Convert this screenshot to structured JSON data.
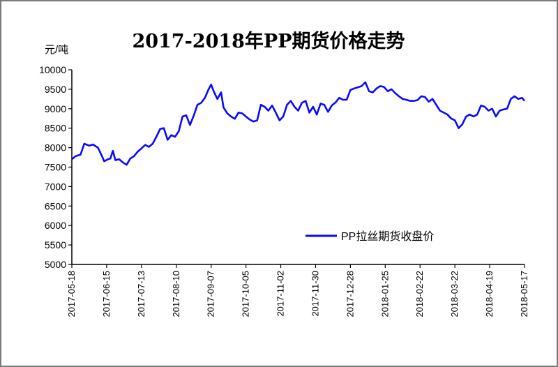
{
  "chart_data": {
    "type": "line",
    "title": "2017-2018年PP期货价格走势",
    "ylabel": "元/吨",
    "xlabel": "",
    "ylim": [
      5000,
      10000
    ],
    "yticks": [
      5000,
      5500,
      6000,
      6500,
      7000,
      7500,
      8000,
      8500,
      9000,
      9500,
      10000
    ],
    "x_ticks": [
      "2017-05-18",
      "2017-06-15",
      "2017-07-13",
      "2017-08-10",
      "2017-09-07",
      "2017-10-05",
      "2017-11-02",
      "2017-11-30",
      "2017-12-28",
      "2018-01-25",
      "2018-02-22",
      "2018-03-22",
      "2018-04-19",
      "2018-05-17"
    ],
    "grid": false,
    "legend_position": "bottom-right",
    "series": [
      {
        "name": "PP拉丝期货收盘价",
        "color": "#0a0aff",
        "points": [
          [
            "2017-05-18",
            7700
          ],
          [
            "2017-05-21",
            7780
          ],
          [
            "2017-05-25",
            7820
          ],
          [
            "2017-05-28",
            8100
          ],
          [
            "2017-06-01",
            8050
          ],
          [
            "2017-06-04",
            8080
          ],
          [
            "2017-06-08",
            8000
          ],
          [
            "2017-06-11",
            7800
          ],
          [
            "2017-06-13",
            7650
          ],
          [
            "2017-06-16",
            7700
          ],
          [
            "2017-06-18",
            7720
          ],
          [
            "2017-06-20",
            7920
          ],
          [
            "2017-06-22",
            7680
          ],
          [
            "2017-06-25",
            7700
          ],
          [
            "2017-06-28",
            7620
          ],
          [
            "2017-07-01",
            7560
          ],
          [
            "2017-07-04",
            7720
          ],
          [
            "2017-07-07",
            7780
          ],
          [
            "2017-07-10",
            7900
          ],
          [
            "2017-07-13",
            7980
          ],
          [
            "2017-07-16",
            8070
          ],
          [
            "2017-07-19",
            8020
          ],
          [
            "2017-07-22",
            8100
          ],
          [
            "2017-07-25",
            8280
          ],
          [
            "2017-07-28",
            8480
          ],
          [
            "2017-07-31",
            8500
          ],
          [
            "2017-08-03",
            8200
          ],
          [
            "2017-08-06",
            8320
          ],
          [
            "2017-08-09",
            8280
          ],
          [
            "2017-08-12",
            8420
          ],
          [
            "2017-08-15",
            8800
          ],
          [
            "2017-08-18",
            8830
          ],
          [
            "2017-08-21",
            8580
          ],
          [
            "2017-08-24",
            8820
          ],
          [
            "2017-08-27",
            9100
          ],
          [
            "2017-08-30",
            9150
          ],
          [
            "2017-09-02",
            9280
          ],
          [
            "2017-09-05",
            9500
          ],
          [
            "2017-09-07",
            9620
          ],
          [
            "2017-09-09",
            9450
          ],
          [
            "2017-09-12",
            9250
          ],
          [
            "2017-09-15",
            9420
          ],
          [
            "2017-09-17",
            9030
          ],
          [
            "2017-09-20",
            8880
          ],
          [
            "2017-09-23",
            8800
          ],
          [
            "2017-09-26",
            8740
          ],
          [
            "2017-09-29",
            8900
          ],
          [
            "2017-10-02",
            8880
          ],
          [
            "2017-10-05",
            8800
          ],
          [
            "2017-10-08",
            8720
          ],
          [
            "2017-10-11",
            8670
          ],
          [
            "2017-10-14",
            8700
          ],
          [
            "2017-10-17",
            9100
          ],
          [
            "2017-10-20",
            9050
          ],
          [
            "2017-10-23",
            8950
          ],
          [
            "2017-10-26",
            9080
          ],
          [
            "2017-10-29",
            8900
          ],
          [
            "2017-11-01",
            8700
          ],
          [
            "2017-11-04",
            8800
          ],
          [
            "2017-11-07",
            9100
          ],
          [
            "2017-11-10",
            9200
          ],
          [
            "2017-11-13",
            9050
          ],
          [
            "2017-11-16",
            8950
          ],
          [
            "2017-11-19",
            9150
          ],
          [
            "2017-11-22",
            9200
          ],
          [
            "2017-11-25",
            8900
          ],
          [
            "2017-11-28",
            9050
          ],
          [
            "2017-12-01",
            8850
          ],
          [
            "2017-12-04",
            9130
          ],
          [
            "2017-12-07",
            9100
          ],
          [
            "2017-12-10",
            8920
          ],
          [
            "2017-12-13",
            9080
          ],
          [
            "2017-12-16",
            9160
          ],
          [
            "2017-12-19",
            9280
          ],
          [
            "2017-12-22",
            9230
          ],
          [
            "2017-12-25",
            9230
          ],
          [
            "2017-12-28",
            9480
          ],
          [
            "2017-12-31",
            9520
          ],
          [
            "2018-01-03",
            9550
          ],
          [
            "2018-01-06",
            9580
          ],
          [
            "2018-01-09",
            9680
          ],
          [
            "2018-01-12",
            9450
          ],
          [
            "2018-01-15",
            9420
          ],
          [
            "2018-01-18",
            9520
          ],
          [
            "2018-01-21",
            9580
          ],
          [
            "2018-01-24",
            9560
          ],
          [
            "2018-01-27",
            9450
          ],
          [
            "2018-01-30",
            9500
          ],
          [
            "2018-02-02",
            9400
          ],
          [
            "2018-02-05",
            9320
          ],
          [
            "2018-02-08",
            9250
          ],
          [
            "2018-02-11",
            9230
          ],
          [
            "2018-02-14",
            9200
          ],
          [
            "2018-02-17",
            9200
          ],
          [
            "2018-02-20",
            9220
          ],
          [
            "2018-02-23",
            9320
          ],
          [
            "2018-02-26",
            9300
          ],
          [
            "2018-03-01",
            9180
          ],
          [
            "2018-03-04",
            9250
          ],
          [
            "2018-03-07",
            9100
          ],
          [
            "2018-03-10",
            8950
          ],
          [
            "2018-03-13",
            8900
          ],
          [
            "2018-03-16",
            8850
          ],
          [
            "2018-03-19",
            8750
          ],
          [
            "2018-03-22",
            8700
          ],
          [
            "2018-03-25",
            8500
          ],
          [
            "2018-03-28",
            8600
          ],
          [
            "2018-03-31",
            8800
          ],
          [
            "2018-04-03",
            8850
          ],
          [
            "2018-04-06",
            8800
          ],
          [
            "2018-04-09",
            8850
          ],
          [
            "2018-04-12",
            9080
          ],
          [
            "2018-04-15",
            9050
          ],
          [
            "2018-04-18",
            8950
          ],
          [
            "2018-04-21",
            9000
          ],
          [
            "2018-04-24",
            8800
          ],
          [
            "2018-04-27",
            8950
          ],
          [
            "2018-04-30",
            8980
          ],
          [
            "2018-05-03",
            9000
          ],
          [
            "2018-05-06",
            9250
          ],
          [
            "2018-05-09",
            9320
          ],
          [
            "2018-05-12",
            9250
          ],
          [
            "2018-05-15",
            9280
          ],
          [
            "2018-05-17",
            9200
          ]
        ]
      }
    ]
  }
}
